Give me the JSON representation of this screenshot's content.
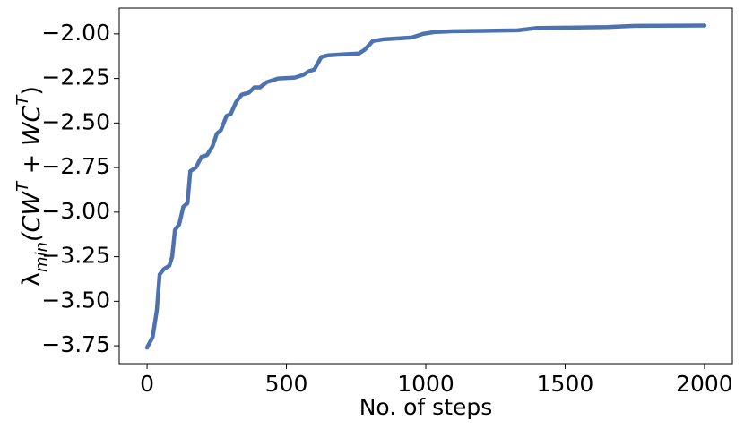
{
  "chart_data": {
    "type": "line",
    "xlabel": "No. of steps",
    "ylabel_parts": [
      "λ",
      "min",
      "(CW",
      "T",
      " + WC",
      "T",
      ")"
    ],
    "x": [
      0,
      20,
      35,
      45,
      60,
      80,
      90,
      100,
      115,
      130,
      145,
      155,
      175,
      195,
      215,
      235,
      250,
      265,
      285,
      300,
      320,
      340,
      365,
      385,
      405,
      430,
      470,
      530,
      560,
      580,
      600,
      625,
      650,
      700,
      760,
      780,
      810,
      850,
      900,
      950,
      990,
      1030,
      1100,
      1200,
      1330,
      1400,
      1500,
      1650,
      1750,
      2000
    ],
    "series": [
      {
        "color": "#4c72b0",
        "values": [
          -3.76,
          -3.7,
          -3.55,
          -3.35,
          -3.32,
          -3.3,
          -3.25,
          -3.1,
          -3.07,
          -2.97,
          -2.95,
          -2.77,
          -2.75,
          -2.69,
          -2.68,
          -2.63,
          -2.56,
          -2.54,
          -2.46,
          -2.45,
          -2.38,
          -2.34,
          -2.33,
          -2.3,
          -2.3,
          -2.27,
          -2.25,
          -2.245,
          -2.23,
          -2.21,
          -2.2,
          -2.13,
          -2.12,
          -2.115,
          -2.11,
          -2.09,
          -2.04,
          -2.03,
          -2.025,
          -2.02,
          -2.0,
          -1.99,
          -1.985,
          -1.983,
          -1.98,
          -1.967,
          -1.965,
          -1.962,
          -1.955,
          -1.953
        ]
      }
    ],
    "xlim": [
      -100,
      2100
    ],
    "ylim": [
      -3.85,
      -1.855
    ],
    "xticks": [
      0,
      500,
      1000,
      1500,
      2000
    ],
    "yticks": [
      {
        "value": -3.75,
        "label": "−3.75"
      },
      {
        "value": -3.5,
        "label": "−3.50"
      },
      {
        "value": -3.25,
        "label": "−3.25"
      },
      {
        "value": -3.0,
        "label": "−3.00"
      },
      {
        "value": -2.75,
        "label": "−2.75"
      },
      {
        "value": -2.5,
        "label": "−2.50"
      },
      {
        "value": -2.25,
        "label": "−2.25"
      },
      {
        "value": -2.0,
        "label": "−2.00"
      }
    ]
  }
}
